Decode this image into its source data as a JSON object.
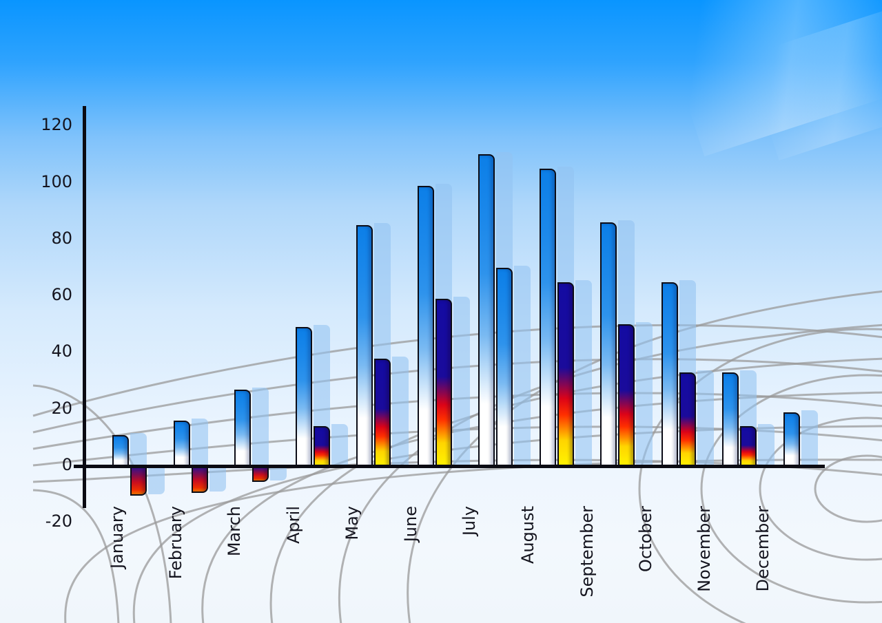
{
  "chart_data": {
    "type": "bar",
    "title": "",
    "xlabel": "",
    "ylabel": "",
    "categories": [
      "January",
      "February",
      "March",
      "April",
      "May",
      "June",
      "July",
      "August",
      "September",
      "October",
      "November",
      "December"
    ],
    "series": [
      {
        "name": "primary-blue-bars",
        "color_style": "blue-gradient",
        "values": [
          11,
          16,
          27,
          49,
          85,
          99,
          110,
          105,
          86,
          65,
          33,
          19
        ]
      },
      {
        "name": "secondary-flame-bars",
        "color_style": "flame-gradient",
        "values": [
          -10,
          -9,
          -5,
          14,
          38,
          59,
          70,
          65,
          50,
          33,
          14,
          null
        ],
        "bar_styles": [
          "flame",
          "flame",
          "flame",
          "flame",
          "flame",
          "flame",
          "blue",
          "flame",
          "flame",
          "flame",
          "flame",
          null
        ]
      }
    ],
    "ylim": [
      -20,
      120
    ],
    "ytick_interval": 20,
    "legend": "none",
    "grid": "decorative-gray-perspective-web"
  },
  "y_axis": {
    "labels": [
      "120",
      "100",
      "80",
      "60",
      "40",
      "20",
      "0",
      "-20"
    ],
    "values": [
      120,
      100,
      80,
      60,
      40,
      20,
      0,
      -20
    ]
  },
  "colors": {
    "sky_top": "#0995FF",
    "sky_bottom": "#F3F8FD",
    "bar_blue_top": "#0C7FE8",
    "bar_fade_bottom": "#FFFFFF",
    "flame_navy": "#150CA0",
    "flame_red": "#E0031A",
    "flame_yellow": "#FFF200",
    "negative_purple": "#33128E",
    "negative_orange": "#FF7D00",
    "echo_bar": "rgba(147,194,242,0.58)",
    "grid_line": "#9A9A9A",
    "axis_line": "#0B0B12",
    "label_text": "#15151F"
  }
}
